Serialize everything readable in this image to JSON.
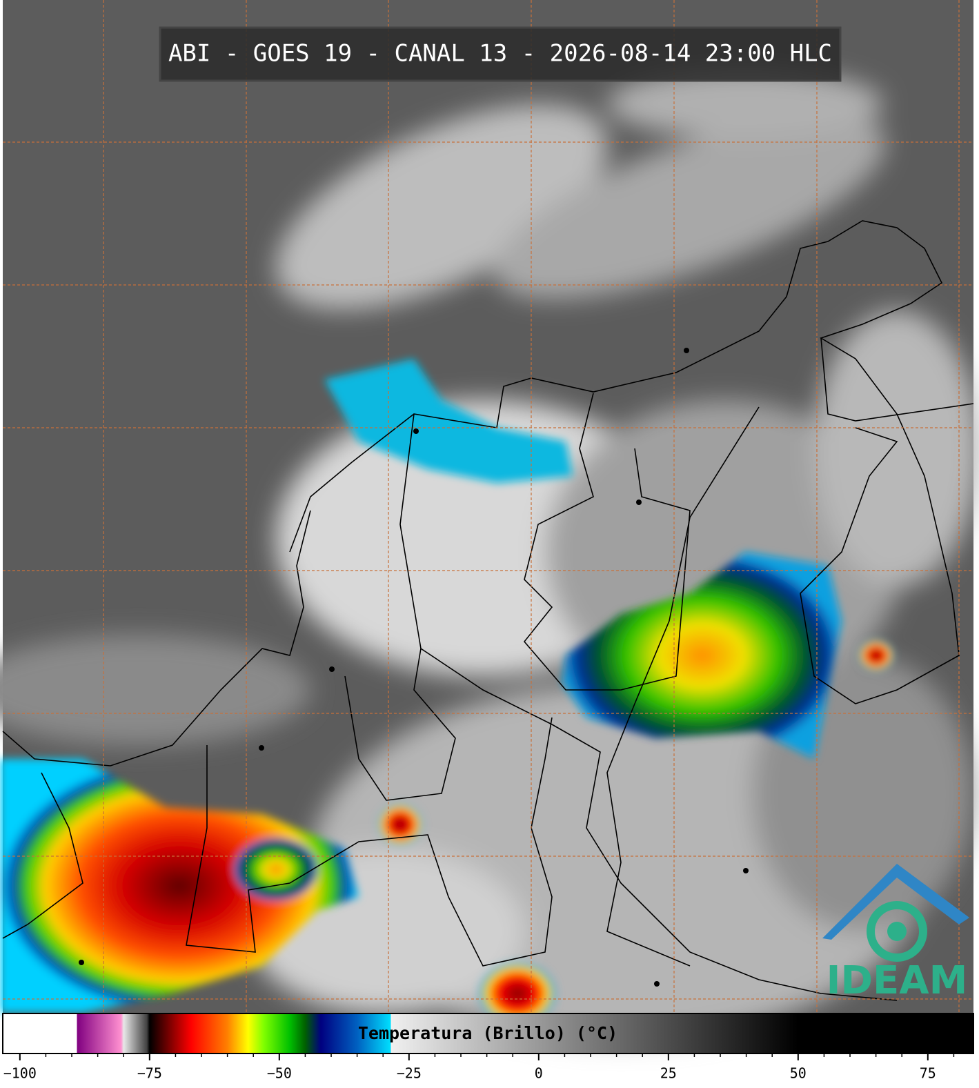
{
  "title": "ABI - GOES 19 - CANAL 13 - 2026-08-14 23:00 HLC",
  "logo": "IDEAM",
  "chart_data": {
    "type": "colorbar",
    "label": "Temperatura (Brillo) (°C)",
    "xlim": [
      -103.3,
      83.8
    ],
    "xticks": [
      {
        "value": -100,
        "label": "−100"
      },
      {
        "value": -75,
        "label": "−75"
      },
      {
        "value": -50,
        "label": "−50"
      },
      {
        "value": -25,
        "label": "−25"
      },
      0,
      25,
      50,
      75
    ],
    "minor_xticks": [
      -95,
      -90,
      -85,
      -80,
      -70,
      -65,
      -60,
      -55,
      -45,
      -40,
      -35,
      -30,
      -20,
      -15,
      -10,
      -5,
      5,
      10,
      15,
      20,
      30,
      35,
      40,
      45,
      55,
      60,
      65,
      70,
      80
    ],
    "colormap": [
      {
        "value": -103.3,
        "color": "#ffffff"
      },
      {
        "value": -89,
        "color": "#ffffff"
      },
      {
        "value": -89,
        "color": "#800080"
      },
      {
        "value": -80.5,
        "color": "#ff90d0"
      },
      {
        "value": -80,
        "color": "#e8e8e8"
      },
      {
        "value": -75.5,
        "color": "#404040"
      },
      {
        "value": -75,
        "color": "#000000"
      },
      {
        "value": -73,
        "color": "#400000"
      },
      {
        "value": -67,
        "color": "#ff0000"
      },
      {
        "value": -60,
        "color": "#ff8000"
      },
      {
        "value": -56,
        "color": "#ffff00"
      },
      {
        "value": -53,
        "color": "#80ff00"
      },
      {
        "value": -48,
        "color": "#00c000"
      },
      {
        "value": -45,
        "color": "#006000"
      },
      {
        "value": -42,
        "color": "#000080"
      },
      {
        "value": -35,
        "color": "#0060c0"
      },
      {
        "value": -28.5,
        "color": "#00e0ff"
      },
      {
        "value": -28.5,
        "color": "#f0f0f0"
      },
      {
        "value": 50,
        "color": "#000000"
      },
      {
        "value": 83.8,
        "color": "#000000"
      }
    ]
  }
}
